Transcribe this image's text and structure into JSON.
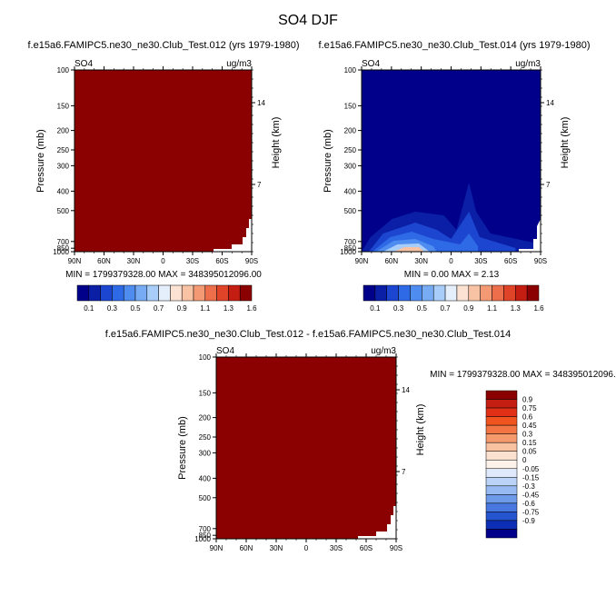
{
  "title": "SO4 DJF",
  "chart_data": [
    {
      "type": "heatmap",
      "title": "f.e15a6.FAMIPC5.ne30_ne30.Club_Test.012 (yrs 1979-1980)",
      "variable": "SO4",
      "units": "ug/m3",
      "ylabel": "Pressure (mb)",
      "ylabel_right": "Height (km)",
      "x_ticks": [
        "90N",
        "60N",
        "30N",
        "0",
        "30S",
        "60S",
        "90S"
      ],
      "y_ticks": [
        "100",
        "150",
        "200",
        "250",
        "300",
        "400",
        "500",
        "700",
        "850",
        "1000"
      ],
      "y_ticks_right": [
        "14",
        "7"
      ],
      "stats": "MIN = 1799379328.00  MAX = 348395012096.00",
      "colorbar_labels": [
        "0.1",
        "0.3",
        "0.5",
        "0.7",
        "0.9",
        "1.1",
        "1.3",
        "1.6"
      ]
    },
    {
      "type": "heatmap",
      "title": "f.e15a6.FAMIPC5.ne30_ne30.Club_Test.014 (yrs 1979-1980)",
      "variable": "SO4",
      "units": "ug/m3",
      "ylabel": "Pressure (mb)",
      "ylabel_right": "Height (km)",
      "x_ticks": [
        "90N",
        "60N",
        "30N",
        "0",
        "30S",
        "60S",
        "90S"
      ],
      "y_ticks": [
        "100",
        "150",
        "200",
        "250",
        "300",
        "400",
        "500",
        "700",
        "850",
        "1000"
      ],
      "y_ticks_right": [
        "14",
        "7"
      ],
      "stats": "MIN =   0.00  MAX =   2.13",
      "colorbar_labels": [
        "0.1",
        "0.3",
        "0.5",
        "0.7",
        "0.9",
        "1.1",
        "1.3",
        "1.6"
      ]
    },
    {
      "type": "heatmap",
      "title": "f.e15a6.FAMIPC5.ne30_ne30.Club_Test.012 - f.e15a6.FAMIPC5.ne30_ne30.Club_Test.014",
      "variable": "SO4",
      "units": "ug/m3",
      "ylabel": "Pressure (mb)",
      "ylabel_right": "Height (km)",
      "x_ticks": [
        "90N",
        "60N",
        "30N",
        "0",
        "30S",
        "60S",
        "90S"
      ],
      "y_ticks": [
        "100",
        "150",
        "200",
        "250",
        "300",
        "400",
        "500",
        "700",
        "850",
        "1000"
      ],
      "y_ticks_right": [
        "14",
        "7"
      ],
      "stats": "MIN = 1799379328.00  MAX = 348395012096.00",
      "colorbar_labels": [
        "0.9",
        "0.75",
        "0.6",
        "0.45",
        "0.3",
        "0.15",
        "0.05",
        "0",
        "-0.05",
        "-0.15",
        "-0.3",
        "-0.45",
        "-0.6",
        "-0.75",
        "-0.9"
      ]
    }
  ],
  "colors": {
    "field_red": "#8b0000",
    "seq_palette": [
      "#00008b",
      "#0a1fa6",
      "#1c46cf",
      "#2f6ae6",
      "#4f8cf0",
      "#77acf5",
      "#a7cdf8",
      "#e5eefb",
      "#fbe2d3",
      "#f8c2a5",
      "#f39a74",
      "#ec6e4a",
      "#e04428",
      "#c41d12",
      "#8b0000"
    ],
    "div_palette": [
      "#8b0000",
      "#c41d12",
      "#e23016",
      "#f2541f",
      "#f27543",
      "#f59a6c",
      "#f8c1a0",
      "#fbe1cf",
      "#fdf2ea",
      "#dfe9fb",
      "#bcd3f8",
      "#97baf3",
      "#6e9aea",
      "#4777df",
      "#2554cf",
      "#0b2eb4",
      "#00008b"
    ]
  }
}
